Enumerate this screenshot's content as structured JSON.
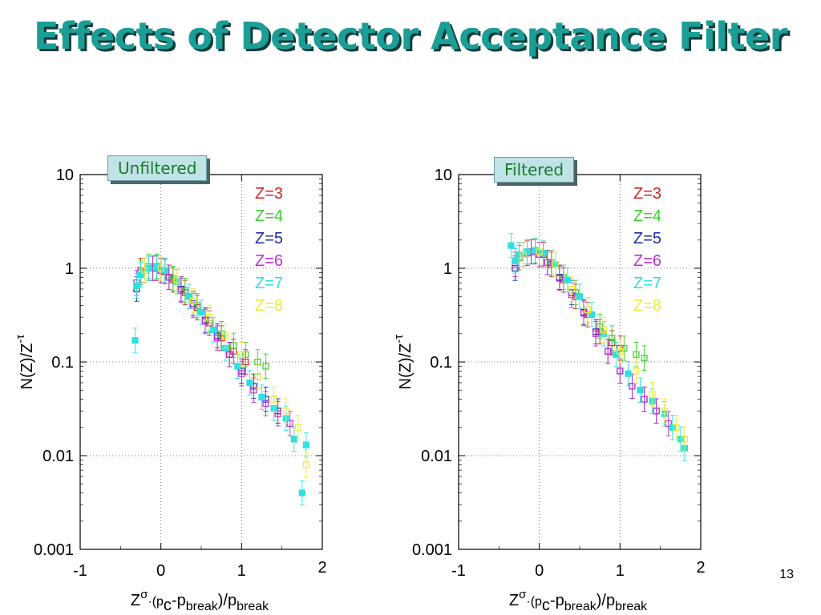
{
  "slide": {
    "title": "Effects of Detector Acceptance Filter",
    "page_number": "13"
  },
  "chart_data": [
    {
      "type": "scatter",
      "panel_label": "Unfiltered",
      "xlabel": "Zσ·(pc-pbreak)/pbreak",
      "ylabel": "N(Z)/Z-τ",
      "xlim": [
        -1,
        2
      ],
      "ylim": [
        0.001,
        10
      ],
      "yscale": "log",
      "x_ticks": [
        "-1",
        "0",
        "1",
        "2"
      ],
      "y_ticks": [
        "10",
        "1",
        "0.1",
        "0.01",
        "0.001"
      ],
      "grid": "dotted at x=0, x=1, y=1, y=0.1, y=0.01",
      "legend_position": "top-right",
      "series": [
        {
          "name": "Z=3",
          "color": "#d62222",
          "x": [
            -0.25,
            -0.15,
            -0.05,
            0.05,
            0.15,
            0.3,
            0.45,
            0.6,
            0.75,
            0.9,
            1.05,
            1.2
          ],
          "y": [
            0.95,
            1.0,
            1.0,
            0.92,
            0.75,
            0.55,
            0.38,
            0.26,
            0.18,
            0.13,
            0.1,
            0.07
          ]
        },
        {
          "name": "Z=4",
          "color": "#3ccf2e",
          "x": [
            -0.25,
            -0.15,
            -0.05,
            0.05,
            0.15,
            0.3,
            0.45,
            0.6,
            0.75,
            0.9,
            1.05,
            1.2,
            1.3
          ],
          "y": [
            0.9,
            1.05,
            1.05,
            0.95,
            0.78,
            0.58,
            0.4,
            0.28,
            0.2,
            0.15,
            0.12,
            0.1,
            0.09
          ]
        },
        {
          "name": "Z=5",
          "color": "#1f2aa8",
          "x": [
            -0.3,
            -0.2,
            -0.1,
            0.0,
            0.1,
            0.25,
            0.4,
            0.55,
            0.7,
            0.85,
            1.0,
            1.15,
            1.3,
            1.45
          ],
          "y": [
            0.6,
            0.95,
            1.0,
            0.95,
            0.8,
            0.6,
            0.42,
            0.28,
            0.19,
            0.12,
            0.08,
            0.055,
            0.04,
            0.03
          ]
        },
        {
          "name": "Z=6",
          "color": "#c22ed6",
          "x": [
            -0.3,
            -0.2,
            -0.1,
            0.0,
            0.1,
            0.25,
            0.4,
            0.55,
            0.7,
            0.85,
            1.0,
            1.15,
            1.3,
            1.45,
            1.6
          ],
          "y": [
            0.7,
            0.95,
            1.0,
            0.95,
            0.8,
            0.58,
            0.4,
            0.27,
            0.18,
            0.12,
            0.075,
            0.05,
            0.036,
            0.028,
            0.022
          ]
        },
        {
          "name": "Z=7",
          "color": "#2ee0e0",
          "x": [
            -0.32,
            -0.3,
            -0.25,
            -0.15,
            -0.05,
            0.05,
            0.2,
            0.35,
            0.5,
            0.65,
            0.8,
            0.95,
            1.1,
            1.25,
            1.4,
            1.55,
            1.65,
            1.75,
            1.8
          ],
          "y": [
            0.17,
            0.65,
            0.85,
            1.0,
            1.02,
            0.95,
            0.72,
            0.5,
            0.34,
            0.22,
            0.14,
            0.09,
            0.06,
            0.042,
            0.032,
            0.025,
            0.015,
            0.004,
            0.013
          ]
        },
        {
          "name": "Z=8",
          "color": "#ecec3a",
          "x": [
            -0.2,
            0.0,
            0.2,
            0.4,
            0.6,
            0.8,
            1.0,
            1.2,
            1.4,
            1.55,
            1.7,
            1.8
          ],
          "y": [
            0.95,
            1.0,
            0.75,
            0.45,
            0.3,
            0.19,
            0.12,
            0.07,
            0.04,
            0.03,
            0.02,
            0.008
          ]
        }
      ]
    },
    {
      "type": "scatter",
      "panel_label": "Filtered",
      "xlabel": "Zσ·(pc-pbreak)/pbreak",
      "ylabel": "N(Z)/Z-τ",
      "xlim": [
        -1,
        2
      ],
      "ylim": [
        0.001,
        10
      ],
      "yscale": "log",
      "x_ticks": [
        "-1",
        "0",
        "1",
        "2"
      ],
      "y_ticks": [
        "10",
        "1",
        "0.1",
        "0.01",
        "0.001"
      ],
      "grid": "dotted at x=0, x=1, y=1, y=0.1, y=0.01",
      "legend_position": "top-right",
      "series": [
        {
          "name": "Z=3",
          "color": "#d62222",
          "x": [
            -0.25,
            -0.15,
            -0.05,
            0.05,
            0.15,
            0.3,
            0.45,
            0.6,
            0.75,
            0.9,
            1.0
          ],
          "y": [
            1.3,
            1.45,
            1.5,
            1.4,
            1.1,
            0.75,
            0.5,
            0.32,
            0.21,
            0.16,
            0.14
          ]
        },
        {
          "name": "Z=4",
          "color": "#3ccf2e",
          "x": [
            -0.25,
            -0.15,
            -0.05,
            0.05,
            0.15,
            0.3,
            0.45,
            0.6,
            0.75,
            0.9,
            1.05,
            1.2,
            1.3
          ],
          "y": [
            1.3,
            1.5,
            1.55,
            1.45,
            1.15,
            0.8,
            0.55,
            0.36,
            0.24,
            0.18,
            0.14,
            0.12,
            0.11
          ]
        },
        {
          "name": "Z=5",
          "color": "#1f2aa8",
          "x": [
            -0.3,
            -0.2,
            -0.1,
            0.0,
            0.1,
            0.25,
            0.4,
            0.55,
            0.7,
            0.85,
            1.0,
            1.15,
            1.3,
            1.45
          ],
          "y": [
            1.0,
            1.4,
            1.5,
            1.4,
            1.15,
            0.8,
            0.55,
            0.34,
            0.21,
            0.13,
            0.08,
            0.055,
            0.04,
            0.03
          ]
        },
        {
          "name": "Z=6",
          "color": "#c22ed6",
          "x": [
            -0.3,
            -0.2,
            -0.1,
            0.0,
            0.1,
            0.25,
            0.4,
            0.55,
            0.7,
            0.85,
            1.0,
            1.15,
            1.3,
            1.45,
            1.6
          ],
          "y": [
            1.1,
            1.4,
            1.5,
            1.4,
            1.15,
            0.78,
            0.52,
            0.33,
            0.2,
            0.13,
            0.08,
            0.055,
            0.04,
            0.03,
            0.022
          ]
        },
        {
          "name": "Z=7",
          "color": "#2ee0e0",
          "x": [
            -0.35,
            -0.3,
            -0.25,
            -0.15,
            -0.05,
            0.05,
            0.2,
            0.35,
            0.5,
            0.65,
            0.8,
            0.95,
            1.1,
            1.25,
            1.4,
            1.55,
            1.65,
            1.75,
            1.8
          ],
          "y": [
            1.75,
            1.2,
            1.4,
            1.5,
            1.55,
            1.45,
            1.1,
            0.75,
            0.5,
            0.32,
            0.2,
            0.12,
            0.075,
            0.05,
            0.038,
            0.028,
            0.02,
            0.015,
            0.012
          ]
        },
        {
          "name": "Z=8",
          "color": "#ecec3a",
          "x": [
            -0.2,
            0.0,
            0.2,
            0.4,
            0.6,
            0.8,
            1.0,
            1.2,
            1.4,
            1.55,
            1.7,
            1.8
          ],
          "y": [
            1.4,
            1.5,
            1.1,
            0.6,
            0.36,
            0.22,
            0.13,
            0.08,
            0.045,
            0.03,
            0.02,
            0.015
          ]
        }
      ]
    }
  ]
}
